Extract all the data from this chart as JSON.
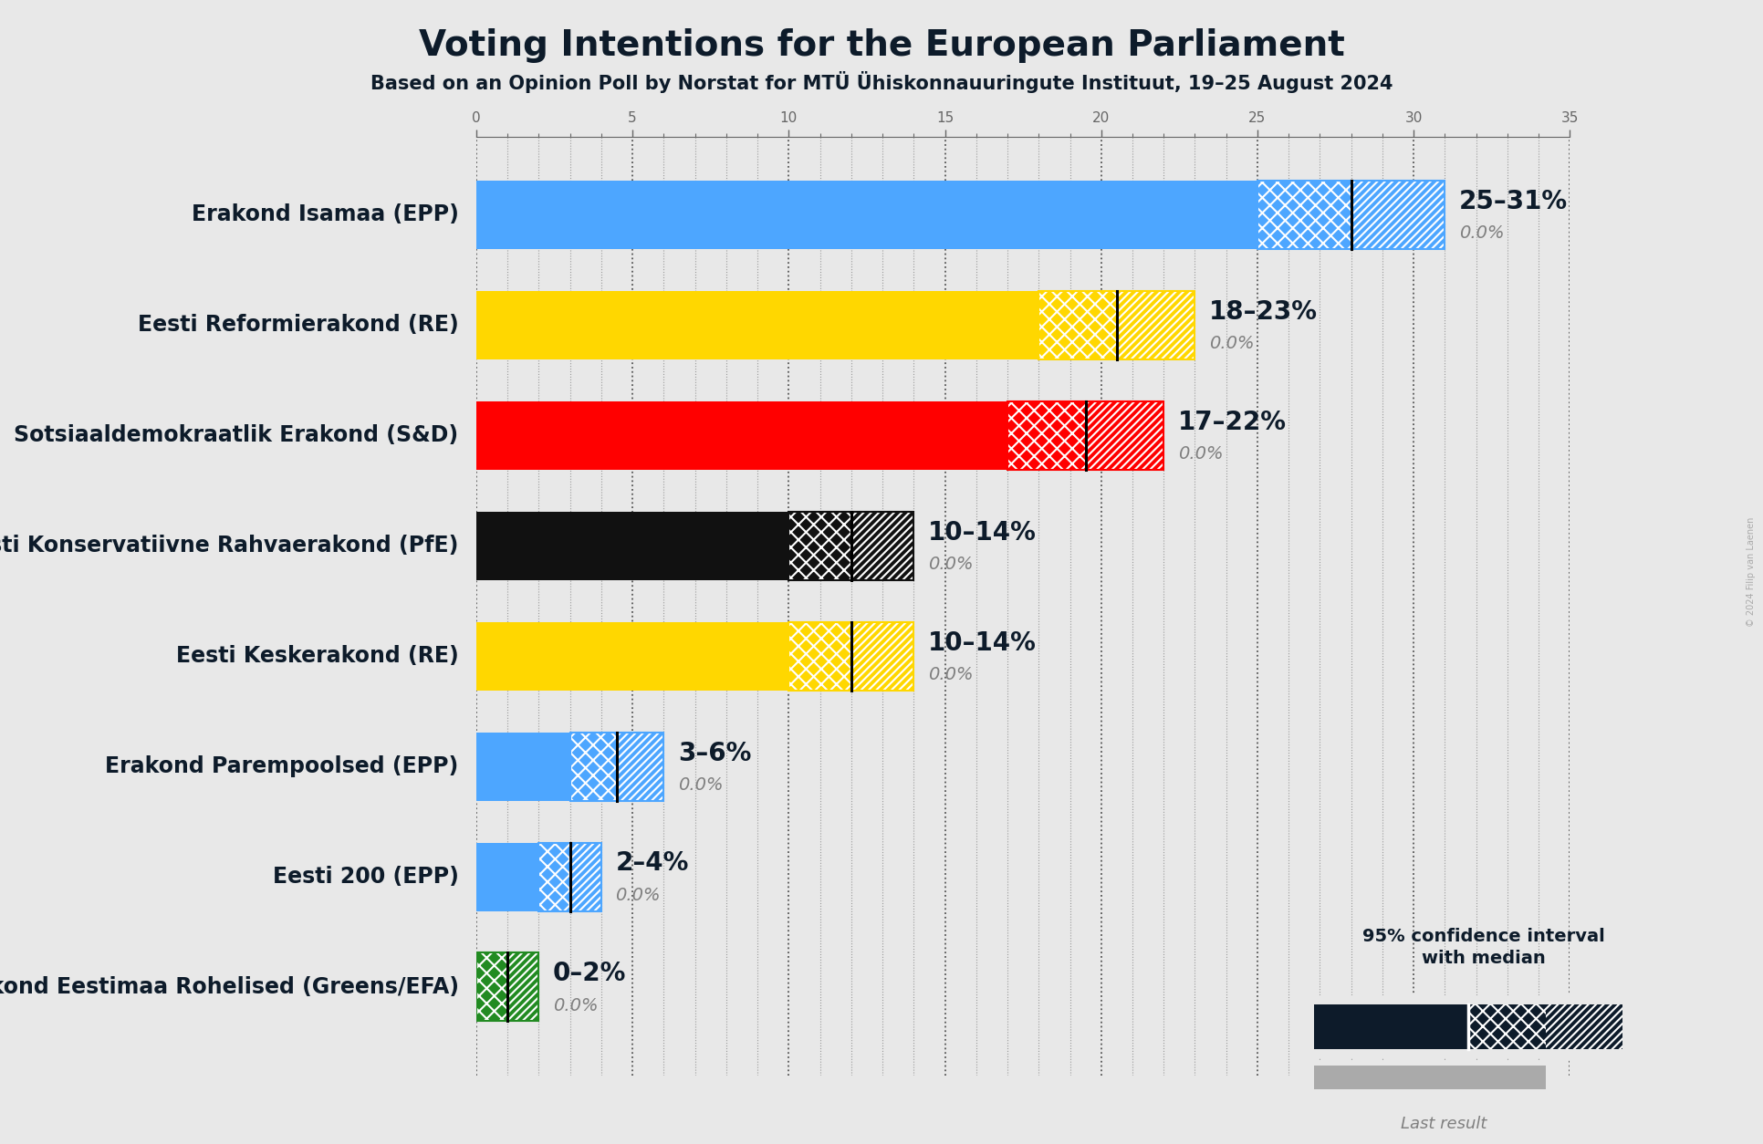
{
  "title": "Voting Intentions for the European Parliament",
  "subtitle": "Based on an Opinion Poll by Norstat for MTÜ Ühiskonnauuringute Instituut, 19–25 August 2024",
  "copyright": "© 2024 Filip van Laenen",
  "parties": [
    "Erakond Isamaa (EPP)",
    "Eesti Reformierakond (RE)",
    "Sotsiaaldemokraatlik Erakond (S&D)",
    "Eesti Konservatiivne Rahvaerakond (PfE)",
    "Eesti Keskerakond (RE)",
    "Erakond Parempoolsed (EPP)",
    "Eesti 200 (EPP)",
    "Erakond Eestimaa Rohelised (Greens/EFA)"
  ],
  "median_values": [
    28.0,
    20.5,
    19.5,
    12.0,
    12.0,
    4.5,
    3.0,
    1.0
  ],
  "low_values": [
    25.0,
    18.0,
    17.0,
    10.0,
    10.0,
    3.0,
    2.0,
    0.0
  ],
  "high_values": [
    31.0,
    23.0,
    22.0,
    14.0,
    14.0,
    6.0,
    4.0,
    2.0
  ],
  "last_results": [
    0.0,
    0.0,
    0.0,
    0.0,
    0.0,
    0.0,
    0.0,
    0.0
  ],
  "range_labels": [
    "25–31%",
    "18–23%",
    "17–22%",
    "10–14%",
    "10–14%",
    "3–6%",
    "2–4%",
    "0–2%"
  ],
  "colors": [
    "#4da6ff",
    "#FFD700",
    "#FF0000",
    "#111111",
    "#FFD700",
    "#4da6ff",
    "#4da6ff",
    "#228B22"
  ],
  "background_color": "#e8e8e8",
  "xlim_max": 35,
  "bar_height": 0.62,
  "title_fontsize": 28,
  "subtitle_fontsize": 15,
  "label_fontsize": 17,
  "range_label_fontsize": 20,
  "last_result_fontsize": 14,
  "tick_fontsize": 11,
  "dark_navy": "#0d1b2a"
}
